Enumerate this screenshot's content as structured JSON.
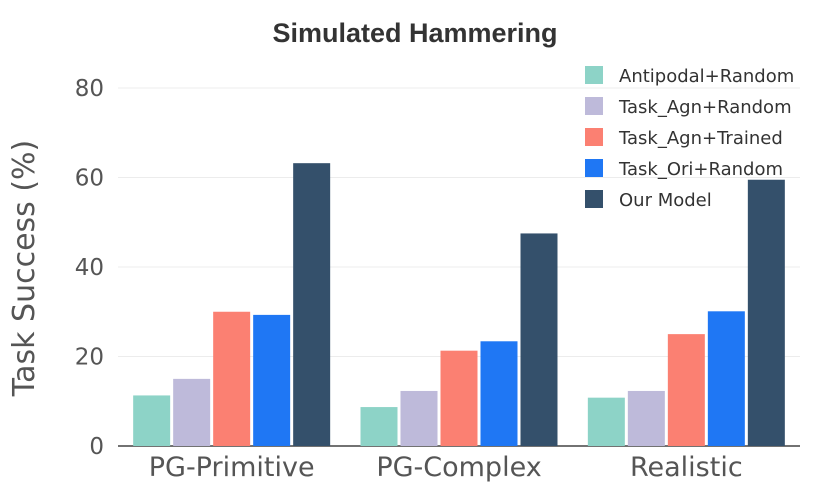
{
  "chart_data": {
    "type": "bar",
    "title": "Simulated Hammering",
    "xlabel": "",
    "ylabel": "Task Success (%)",
    "ylim": [
      0,
      80
    ],
    "yticks": [
      0,
      20,
      40,
      60,
      80
    ],
    "grid": true,
    "legend_position": "top-right",
    "categories": [
      "PG-Primitive",
      "PG-Complex",
      "Realistic"
    ],
    "series": [
      {
        "name": "Antipodal+Random",
        "color": "#8dd3c7",
        "values": [
          11.3,
          8.7,
          10.8
        ]
      },
      {
        "name": "Task_Agn+Random",
        "color": "#bebada",
        "values": [
          15.0,
          12.3,
          12.3
        ]
      },
      {
        "name": "Task_Agn+Trained",
        "color": "#fb8072",
        "values": [
          30.0,
          21.3,
          25.0
        ]
      },
      {
        "name": "Task_Ori+Random",
        "color": "#1f77f4",
        "values": [
          29.3,
          23.4,
          30.1
        ]
      },
      {
        "name": "Our Model",
        "color": "#34506b",
        "values": [
          63.2,
          47.5,
          59.5
        ]
      }
    ]
  }
}
